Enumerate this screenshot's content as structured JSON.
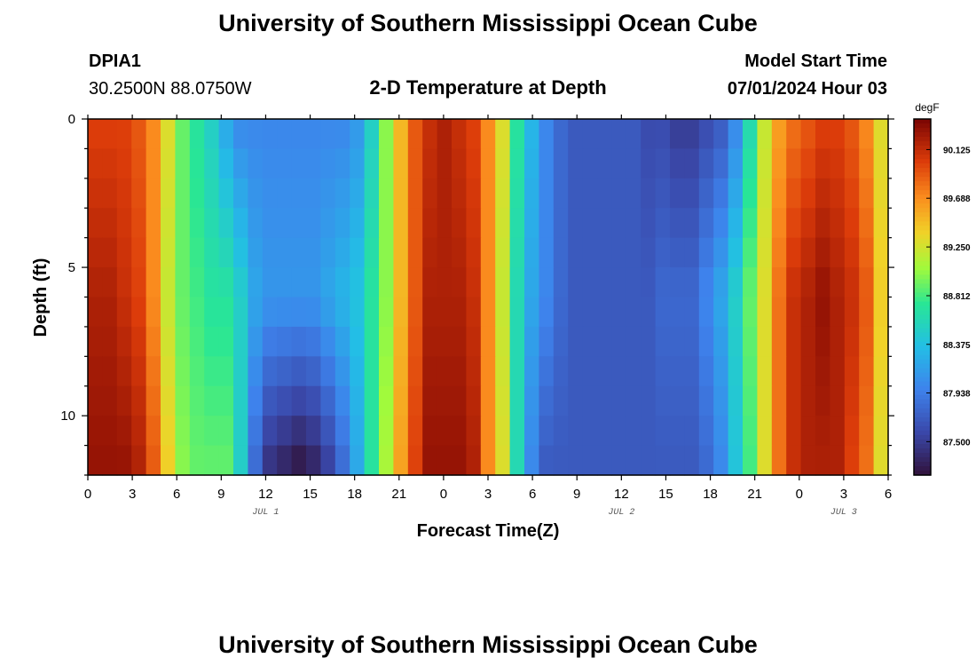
{
  "header": {
    "title": "University of Southern Mississippi Ocean Cube",
    "station": "DPIA1",
    "coords": "30.2500N  88.0750W",
    "subtitle": "2-D Temperature at Depth",
    "model_start_label": "Model Start Time",
    "model_start_value": "07/01/2024 Hour 03"
  },
  "footer": {
    "title": "University of Southern Mississippi Ocean Cube"
  },
  "chart_data": {
    "type": "heatmap",
    "xlabel": "Forecast Time(Z)",
    "ylabel": "Depth (ft)",
    "x_range_hours": [
      0,
      54
    ],
    "y_range_ft": [
      0,
      12
    ],
    "x_ticks": [
      "0",
      "3",
      "6",
      "9",
      "12",
      "15",
      "18",
      "21",
      "0",
      "3",
      "6",
      "9",
      "12",
      "15",
      "18",
      "21",
      "0",
      "3",
      "6"
    ],
    "y_ticks": [
      "0",
      "5",
      "10"
    ],
    "date_labels": [
      {
        "label": "JUL 1",
        "hour": 12
      },
      {
        "label": "JUL 2",
        "hour": 36
      },
      {
        "label": "JUL 3",
        "hour": 51
      }
    ],
    "colorbar": {
      "unit": "degF",
      "range": [
        87.2,
        90.4
      ],
      "ticks": [
        "87.500",
        "87.938",
        "88.375",
        "88.812",
        "89.250",
        "89.688",
        "90.125"
      ],
      "tick_values": [
        87.5,
        87.938,
        88.375,
        88.812,
        89.25,
        89.688,
        90.125
      ]
    },
    "depth_levels_ft": [
      0,
      6,
      12
    ],
    "surface_temps_degF": [
      90.0,
      90.0,
      90.0,
      89.9,
      89.7,
      89.3,
      88.9,
      88.7,
      88.5,
      88.2,
      88.0,
      88.0,
      88.0,
      88.0,
      88.0,
      88.0,
      88.0,
      88.0,
      88.1,
      88.5,
      89.0,
      89.5,
      89.9,
      90.1,
      90.2,
      90.1,
      90.0,
      89.7,
      89.3,
      88.7,
      88.3,
      88.0,
      87.8,
      87.7,
      87.7,
      87.7,
      87.7,
      87.7,
      87.6,
      87.6,
      87.5,
      87.5,
      87.6,
      87.7,
      88.0,
      88.6,
      89.2,
      89.6,
      89.8,
      89.9,
      90.0,
      90.0,
      89.9,
      89.7,
      89.3
    ],
    "mid_temps_degF": [
      90.2,
      90.2,
      90.1,
      90.0,
      89.7,
      89.2,
      88.9,
      88.8,
      88.7,
      88.7,
      88.5,
      88.2,
      88.1,
      88.1,
      88.1,
      88.1,
      88.2,
      88.3,
      88.4,
      88.7,
      89.0,
      89.5,
      89.9,
      90.2,
      90.2,
      90.2,
      90.1,
      89.7,
      89.2,
      88.6,
      88.2,
      88.0,
      87.8,
      87.7,
      87.7,
      87.7,
      87.7,
      87.7,
      87.7,
      87.8,
      87.8,
      87.8,
      88.0,
      88.2,
      88.5,
      88.9,
      89.3,
      89.8,
      90.1,
      90.2,
      90.3,
      90.2,
      90.1,
      89.9,
      89.4
    ],
    "bottom_temps_degF": [
      90.3,
      90.3,
      90.3,
      90.2,
      89.9,
      89.4,
      89.0,
      88.9,
      88.9,
      88.9,
      88.5,
      87.8,
      87.4,
      87.3,
      87.2,
      87.3,
      87.5,
      87.8,
      88.2,
      88.7,
      89.1,
      89.6,
      90.0,
      90.3,
      90.3,
      90.3,
      90.2,
      89.7,
      89.3,
      88.6,
      88.0,
      87.7,
      87.7,
      87.7,
      87.7,
      87.7,
      87.7,
      87.7,
      87.7,
      87.7,
      87.7,
      87.7,
      87.8,
      88.0,
      88.4,
      88.8,
      89.3,
      89.8,
      90.1,
      90.2,
      90.2,
      90.2,
      90.0,
      89.8,
      89.3
    ]
  }
}
